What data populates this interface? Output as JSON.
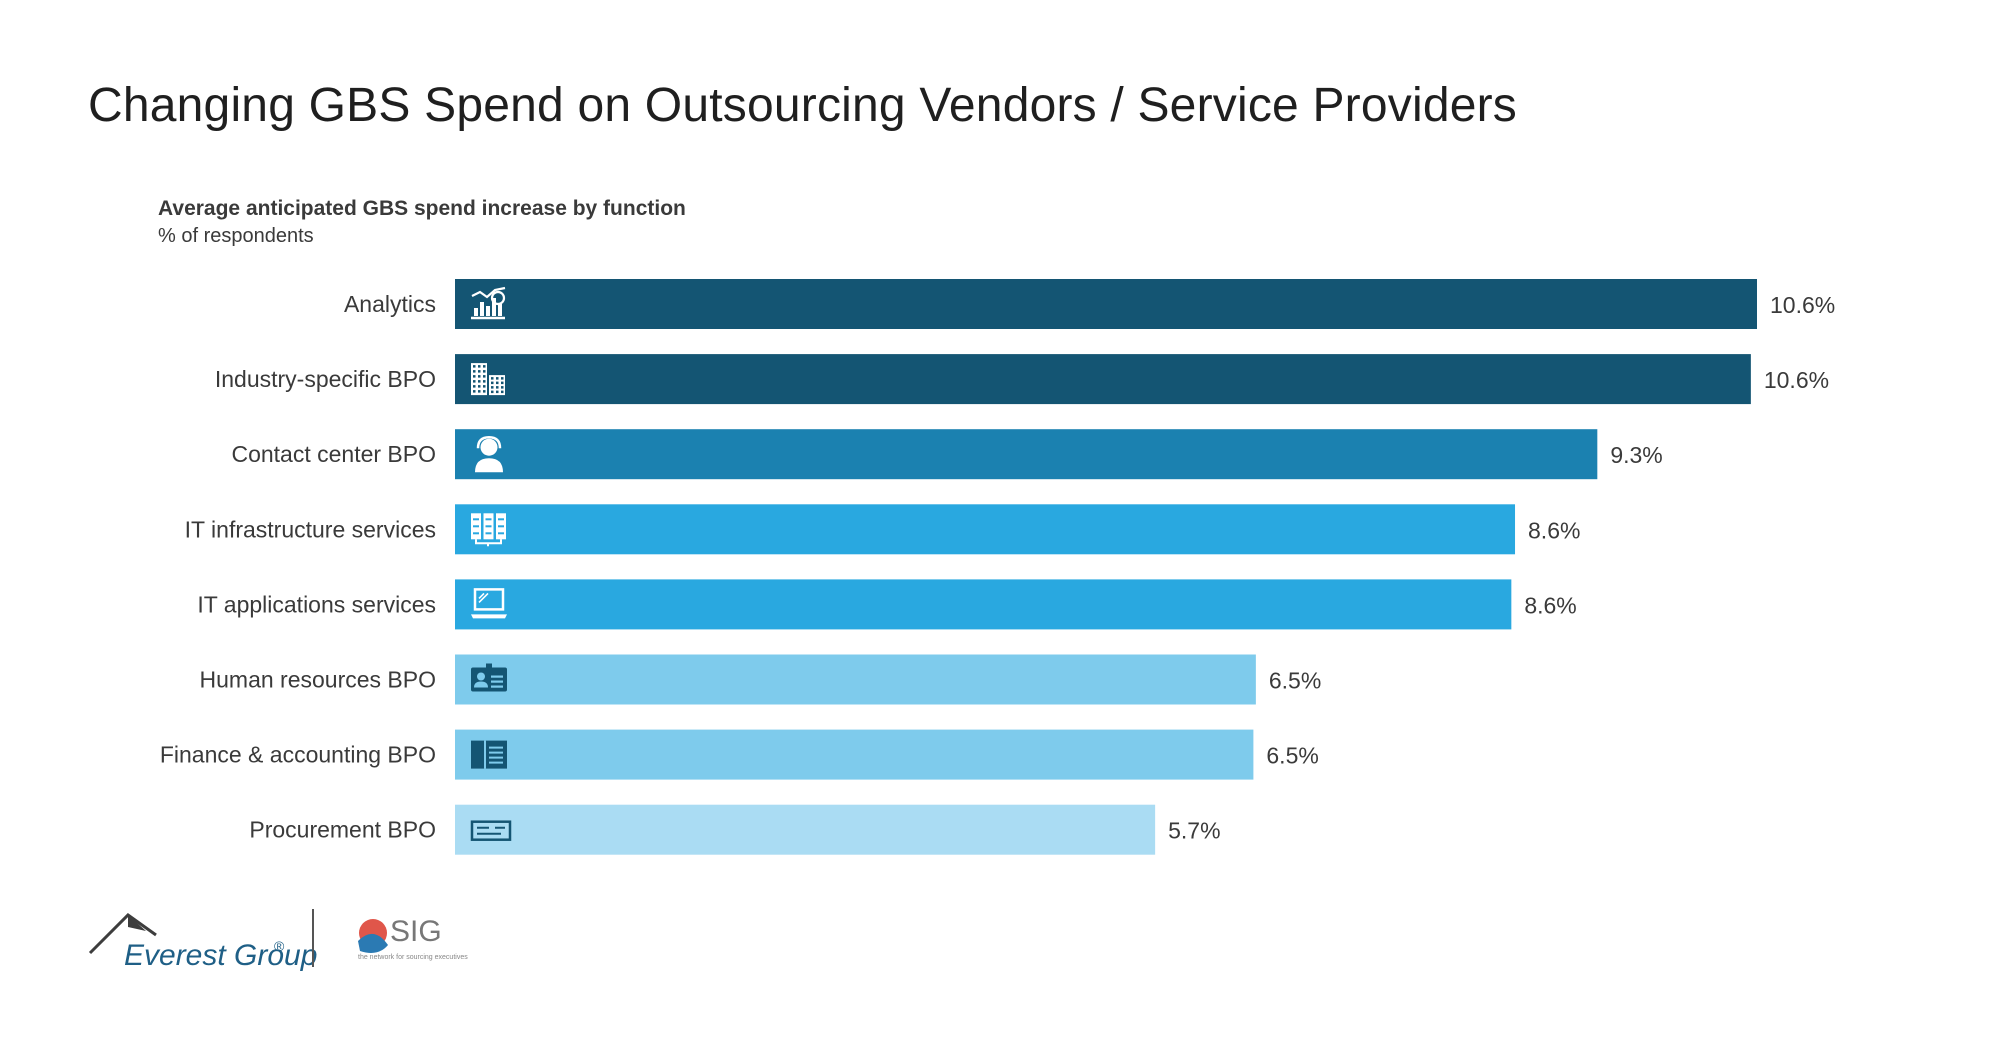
{
  "page": {
    "title": "Changing GBS Spend on Outsourcing Vendors / Service Providers"
  },
  "chart_data": {
    "type": "bar",
    "orientation": "horizontal",
    "title": "Average anticipated GBS spend increase by function",
    "subtitle": "% of respondents",
    "xlim": [
      0,
      10.6
    ],
    "grid": false,
    "categories": [
      "Analytics",
      "Industry-specific BPO",
      "Contact center BPO",
      "IT infrastructure services",
      "IT applications services",
      "Human resources BPO",
      "Finance & accounting BPO",
      "Procurement BPO"
    ],
    "values": [
      10.6,
      10.55,
      9.3,
      8.63,
      8.6,
      6.52,
      6.5,
      5.7
    ],
    "value_labels": [
      "10.6%",
      "10.6%",
      "9.3%",
      "8.6%",
      "8.6%",
      "6.5%",
      "6.5%",
      "5.7%"
    ],
    "colors": [
      "#145573",
      "#145573",
      "#1b81b0",
      "#29a8e0",
      "#29a8e0",
      "#7ecbec",
      "#7ecbec",
      "#aadcf3"
    ],
    "icons": [
      "analytics-icon",
      "buildings-icon",
      "headset-agent-icon",
      "servers-icon",
      "laptop-icon",
      "id-card-icon",
      "ledger-icon",
      "cheque-icon"
    ]
  },
  "footer": {
    "everest_logo_text": "Everest Group",
    "everest_logo_mark": "®",
    "sig_logo_text": "SIG",
    "sig_tagline": "the network for sourcing executives"
  }
}
